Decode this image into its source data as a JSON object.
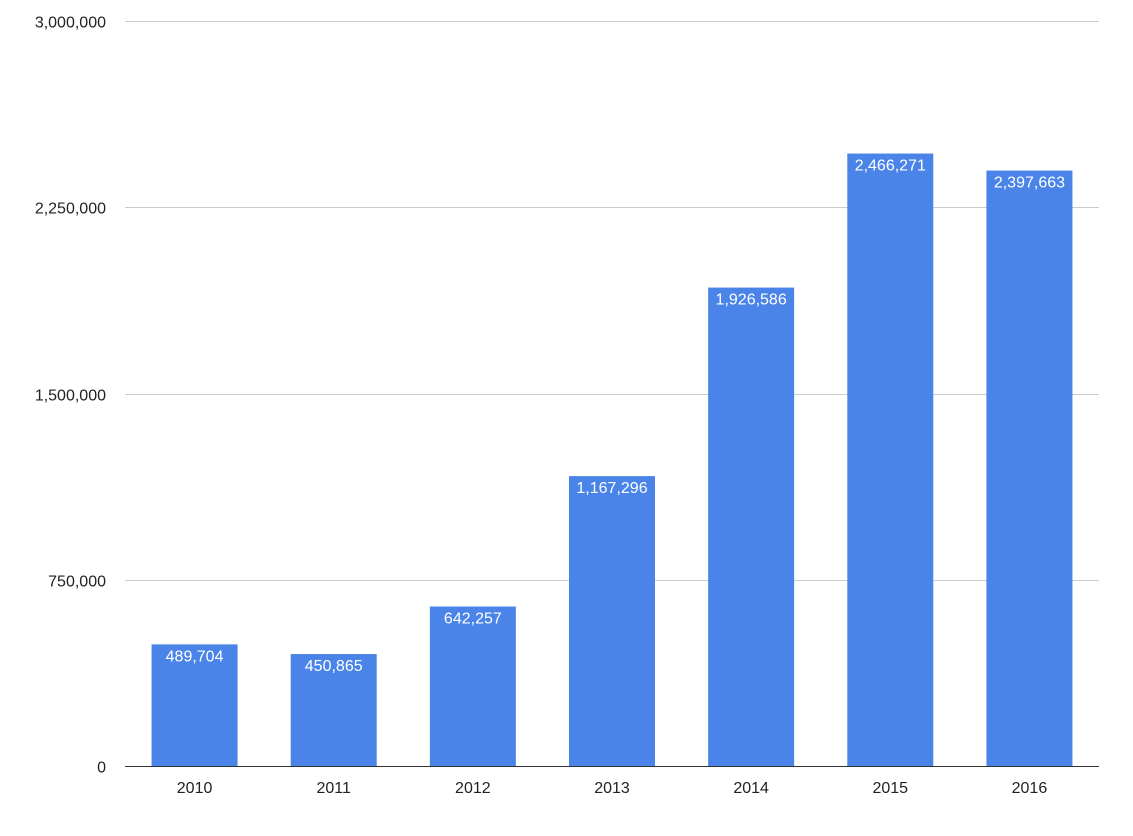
{
  "chart_data": {
    "type": "bar",
    "title": "",
    "xlabel": "",
    "ylabel": "",
    "categories": [
      "2010",
      "2011",
      "2012",
      "2013",
      "2014",
      "2015",
      "2016"
    ],
    "values": [
      489704,
      450865,
      642257,
      1167296,
      1926586,
      2466271,
      2397663
    ],
    "data_labels": [
      "489,704",
      "450,865",
      "642,257",
      "1,167,296",
      "1,926,586",
      "2,466,271",
      "2,397,663"
    ],
    "ylim": [
      0,
      3000000
    ],
    "yticks": [
      0,
      750000,
      1500000,
      2250000,
      3000000
    ],
    "ytick_labels": [
      "0",
      "750,000",
      "1,500,000",
      "2,250,000",
      "3,000,000"
    ],
    "grid": true,
    "legend": "none",
    "bar_color": "#4a84e8",
    "gridline_color": "#cccccc",
    "baseline_color": "#333333",
    "data_label_color": "#ffffff"
  }
}
